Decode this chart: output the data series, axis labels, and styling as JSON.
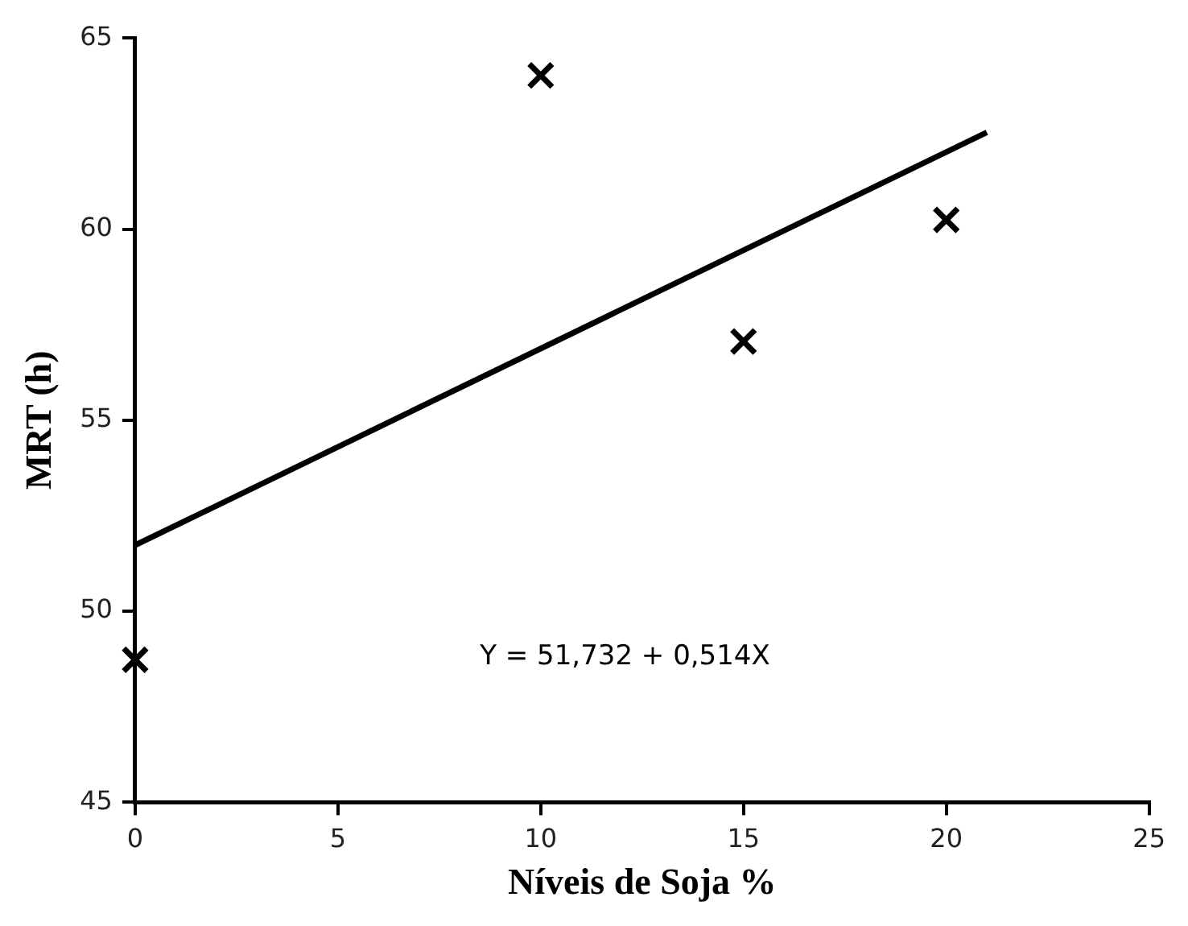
{
  "chart_data": {
    "type": "scatter",
    "xlabel": "Níveis de Soja %",
    "ylabel": "MRT (h)",
    "xlim": [
      0,
      25
    ],
    "xticks": [
      0,
      5,
      10,
      15,
      20,
      25
    ],
    "ylim": [
      45,
      65
    ],
    "yticks": [
      45,
      50,
      55,
      60,
      65
    ],
    "grid": false,
    "marker": "cross",
    "series": [
      {
        "color": "#000000",
        "x": [
          0,
          10,
          15,
          20
        ],
        "values": [
          48.73,
          64.02,
          57.06,
          60.24
        ]
      },
      {
        "type": "line",
        "color": "#000000",
        "x": [
          0,
          21
        ],
        "values": [
          51.73,
          62.53
        ],
        "marker": "none",
        "line_style": "solid"
      }
    ],
    "annotations": [
      "Y = 51,732 + 0,514X"
    ]
  }
}
